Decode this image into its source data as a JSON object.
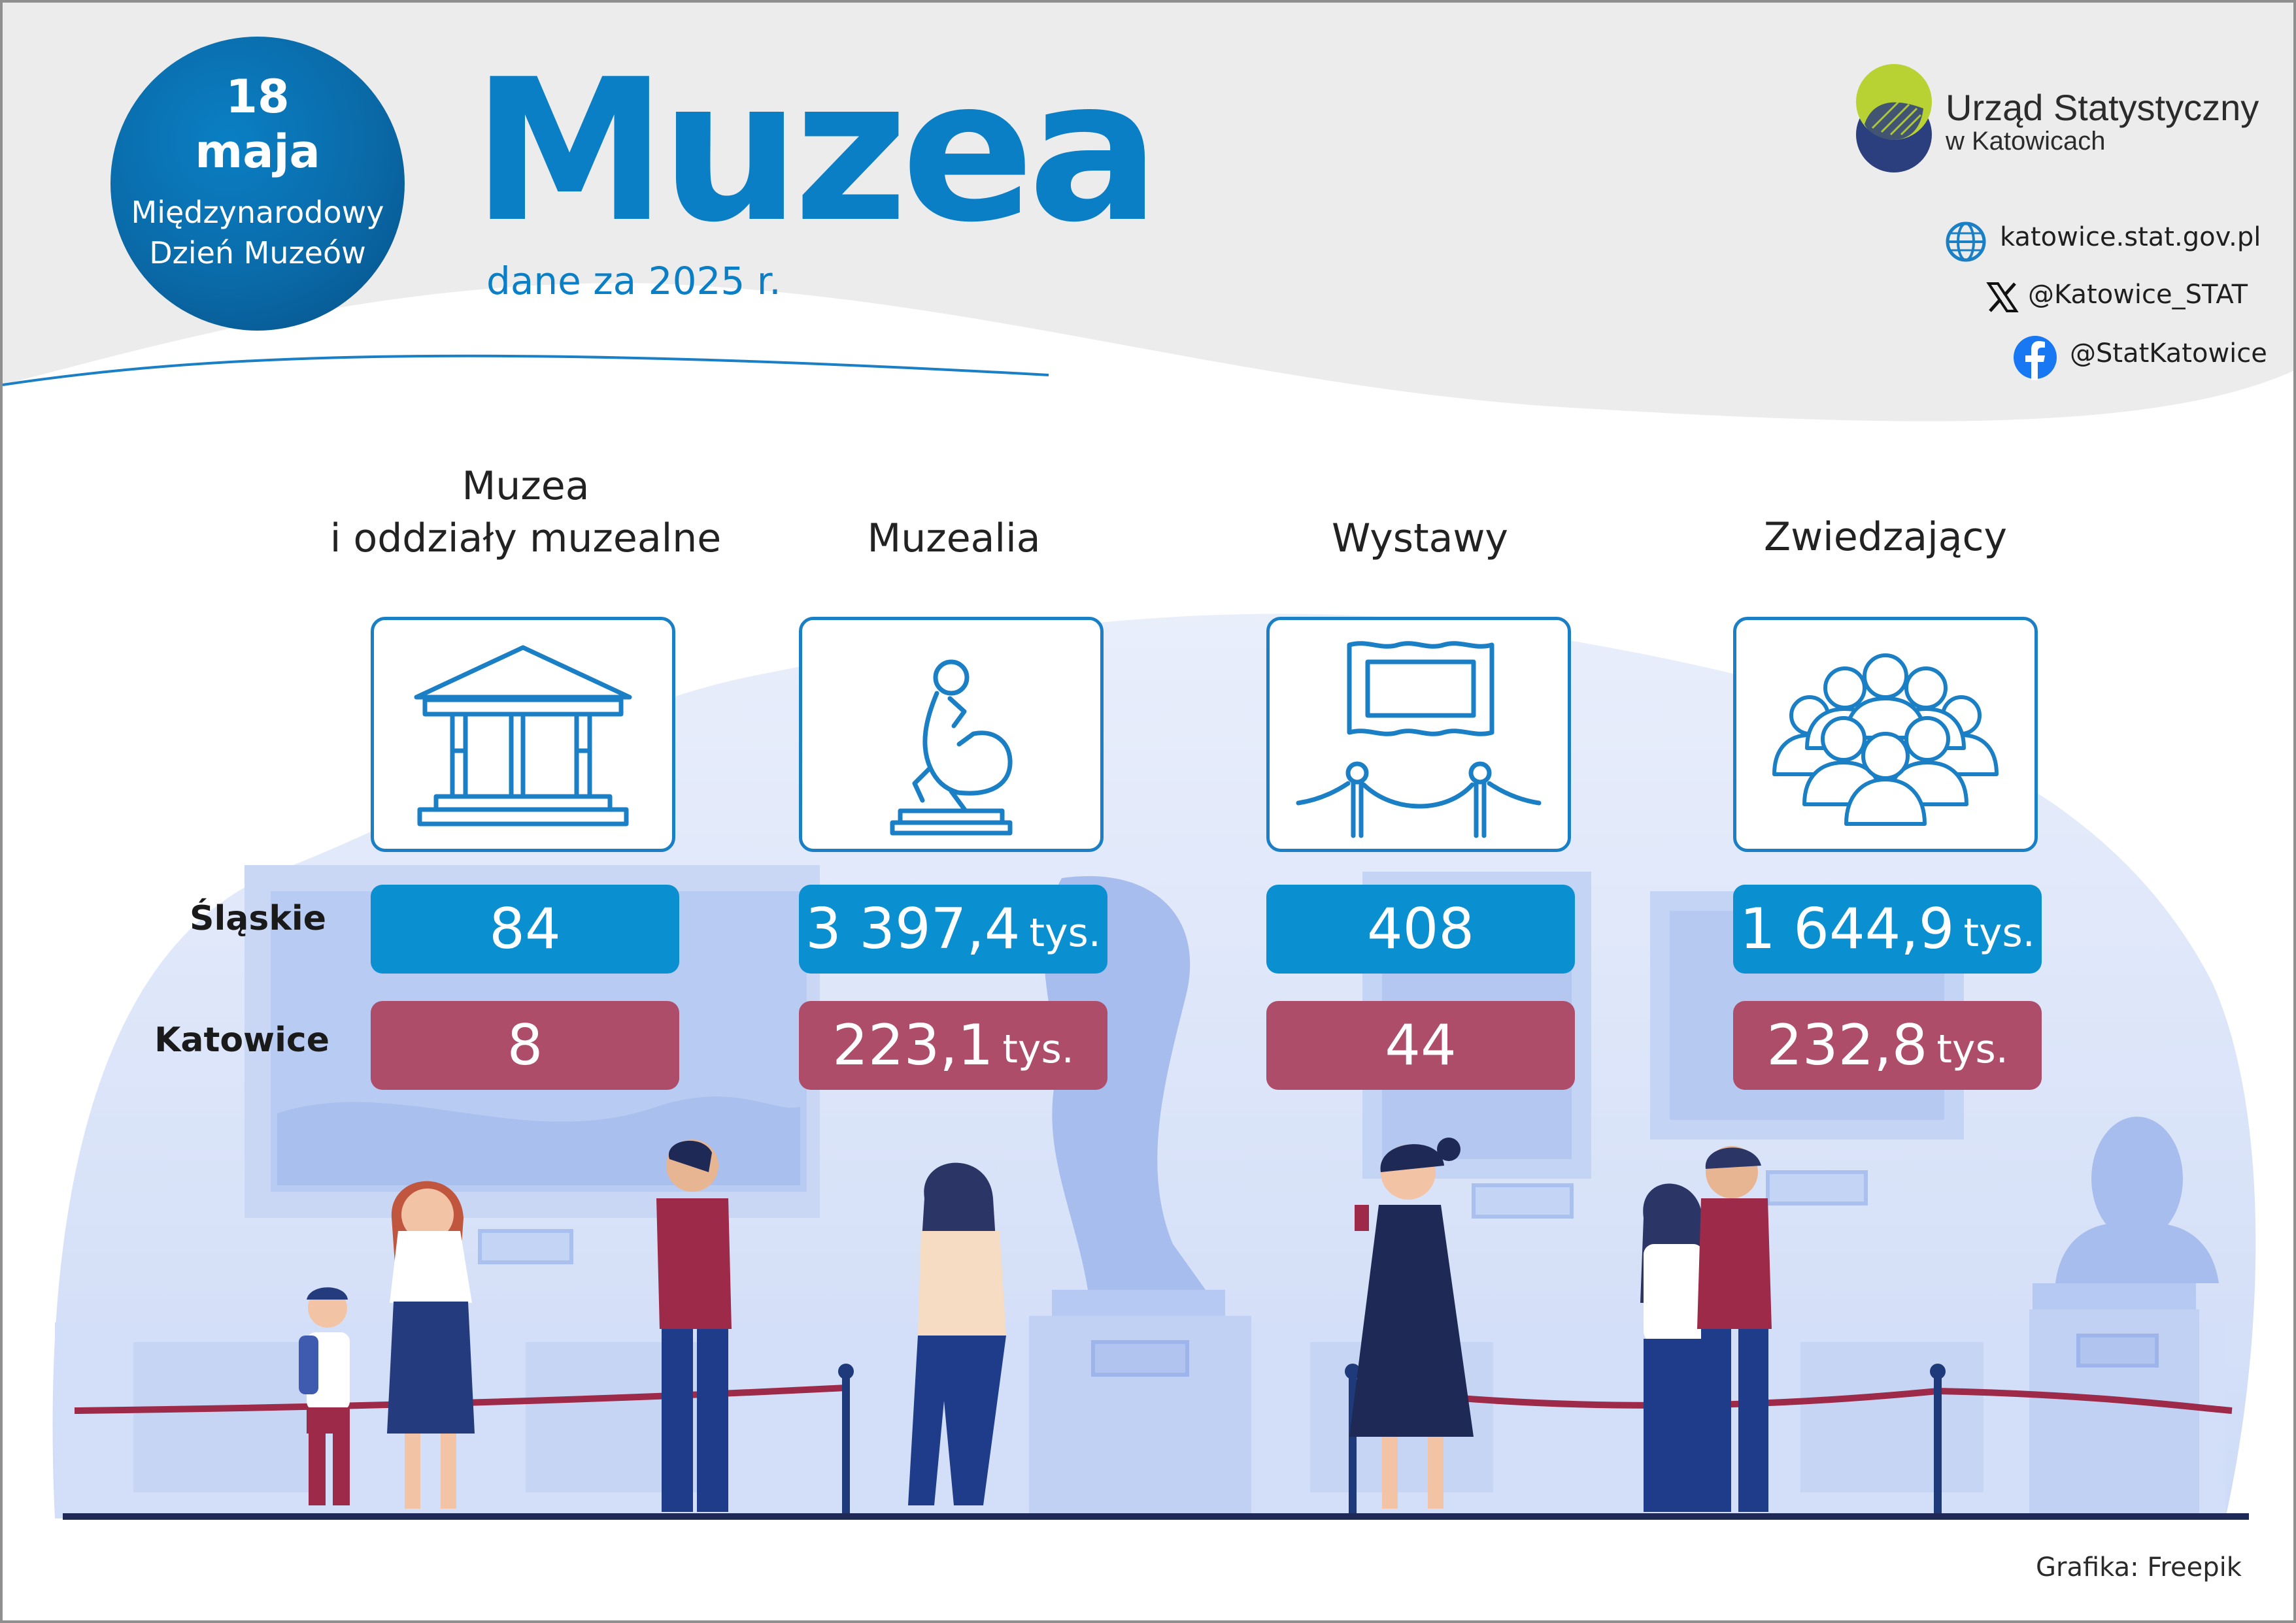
{
  "header": {
    "badge_day": "18",
    "badge_month": "maja",
    "badge_line1": "Międzynarodowy",
    "badge_line2": "Dzień Muzeów",
    "title": "Muzea",
    "subtitle": "dane za 2025 r."
  },
  "organization": {
    "name": "Urząd Statystyczny",
    "city": "w Katowicach",
    "logo_icon": "us-katowice-logo-icon"
  },
  "contacts": [
    {
      "icon": "globe-icon",
      "text": "katowice.stat.gov.pl"
    },
    {
      "icon": "x-logo-icon",
      "text": "@Katowice_STAT"
    },
    {
      "icon": "facebook-icon",
      "text": "@StatKatowice"
    }
  ],
  "regions": {
    "slaskie": "Śląskie",
    "katowice": "Katowice"
  },
  "categories": [
    {
      "label_line1": "Muzea",
      "label_line2": "i oddziały muzealne",
      "icon": "museum-building-icon",
      "slaskie_value": "84",
      "slaskie_unit": "",
      "katowice_value": "8",
      "katowice_unit": ""
    },
    {
      "label_line1": "",
      "label_line2": "Muzealia",
      "icon": "thinker-statue-icon",
      "slaskie_value": "3 397,4",
      "slaskie_unit": "tys.",
      "katowice_value": "223,1",
      "katowice_unit": "tys."
    },
    {
      "label_line1": "",
      "label_line2": "Wystawy",
      "icon": "framed-exhibit-icon",
      "slaskie_value": "408",
      "slaskie_unit": "",
      "katowice_value": "44",
      "katowice_unit": ""
    },
    {
      "label_line1": "",
      "label_line2": "Zwiedzający",
      "icon": "visitors-group-icon",
      "slaskie_value": "1 644,9",
      "slaskie_unit": "tys.",
      "katowice_value": "232,8",
      "katowice_unit": "tys."
    }
  ],
  "colors": {
    "brand_blue": "#0a7fc6",
    "slaskie_box": "#0a8fd1",
    "katowice_box": "#ae4d6a",
    "scene_background": "#dce7fb"
  },
  "credit": "Grafika: Freepik"
}
